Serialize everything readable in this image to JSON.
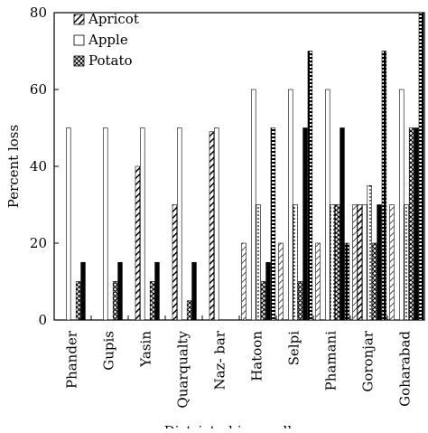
{
  "chart_data": {
    "type": "bar",
    "title": "",
    "xlabel": "District ghizer valleys",
    "ylabel": "Percent loss",
    "ylim": [
      0,
      80
    ],
    "yticks": [
      0,
      20,
      40,
      60,
      80
    ],
    "grid": false,
    "legend_position": "top-left",
    "categories": [
      "Phander",
      "Gupis",
      "Yasin",
      "Quarqualty",
      "Naz- bar",
      "Hatoon",
      "Selpi",
      "Phamani",
      "Goronjar",
      "Goharabad"
    ],
    "legend_entries": [
      "Apricot",
      "Apple",
      "Potato"
    ],
    "series": [
      {
        "name": "",
        "pattern": "diag-light",
        "values": [
          0,
          0,
          0,
          0,
          0,
          20,
          20,
          20,
          30,
          30
        ]
      },
      {
        "name": "Apricot",
        "pattern": "diag-bold",
        "values": [
          0,
          0,
          40,
          30,
          49,
          0,
          0,
          0,
          30,
          0
        ]
      },
      {
        "name": "Apple",
        "pattern": "hollow",
        "values": [
          50,
          50,
          50,
          50,
          50,
          60,
          60,
          60,
          30,
          60
        ]
      },
      {
        "name": "",
        "pattern": "dots",
        "values": [
          0,
          0,
          0,
          0,
          0,
          30,
          30,
          30,
          35,
          30
        ]
      },
      {
        "name": "Potato",
        "pattern": "crosshatch",
        "values": [
          10,
          10,
          10,
          5,
          0,
          10,
          10,
          30,
          20,
          50
        ]
      },
      {
        "name": "",
        "pattern": "solid",
        "values": [
          15,
          15,
          15,
          15,
          0,
          15,
          50,
          50,
          30,
          50
        ]
      },
      {
        "name": "",
        "pattern": "bricks",
        "values": [
          0,
          0,
          0,
          0,
          0,
          50,
          70,
          20,
          70,
          80
        ]
      }
    ]
  }
}
